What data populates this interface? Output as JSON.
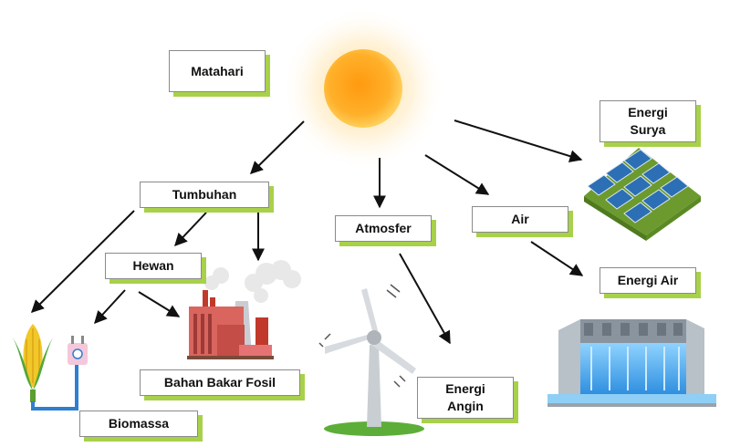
{
  "labels": {
    "matahari": "Matahari",
    "energi_surya": "Energi\nSurya",
    "tumbuhan": "Tumbuhan",
    "atmosfer": "Atmosfer",
    "air": "Air",
    "hewan": "Hewan",
    "energi_air": "Energi Air",
    "bahan_bakar_fosil": "Bahan Bakar Fosil",
    "energi_angin": "Energi\nAngin",
    "biomassa": "Biomassa"
  },
  "colors": {
    "box_shadow": "#a8d14a",
    "sun_core": "#ffa020",
    "arrow": "#111111"
  },
  "icons": [
    "sun-icon",
    "solar-panel-icon",
    "corn-icon",
    "plug-icon",
    "factory-icon",
    "wind-turbine-icon",
    "hydro-dam-icon"
  ]
}
